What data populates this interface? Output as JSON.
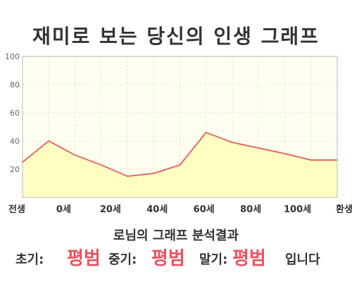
{
  "title": "재미로 보는 당신의 인생 그래프",
  "summary": "로님의 그래프 분석결과",
  "result": {
    "early_label": "초기:",
    "early_value": "평범",
    "mid_label": "중기:",
    "mid_value": "평범",
    "late_label": "말기:",
    "late_value": "평범",
    "suffix": "입니다"
  },
  "colors": {
    "line": "#e26c6c",
    "area_fill": "#ffffc2",
    "plot_bg": "#fffff0",
    "grid": "#e8e6c8",
    "highlight": "#e8535f"
  },
  "chart_data": {
    "type": "area",
    "title": "",
    "xlabel": "",
    "ylabel": "",
    "ylim": [
      0,
      100
    ],
    "yticks": [
      20,
      40,
      60,
      80,
      100
    ],
    "x_tick_labels": [
      "전생",
      "0세",
      "20세",
      "40세",
      "60세",
      "80세",
      "100세",
      "환생"
    ],
    "series": [
      {
        "x": [
          "전생",
          "0세",
          "10세",
          "20세",
          "30세",
          "40세",
          "50세",
          "60세",
          "70세",
          "80세",
          "90세",
          "100세",
          "환생"
        ],
        "values": [
          25,
          40,
          30,
          23,
          15,
          17,
          23,
          46,
          39,
          35,
          31,
          26.5,
          26.5
        ]
      }
    ],
    "grid": true,
    "legend": "none"
  }
}
